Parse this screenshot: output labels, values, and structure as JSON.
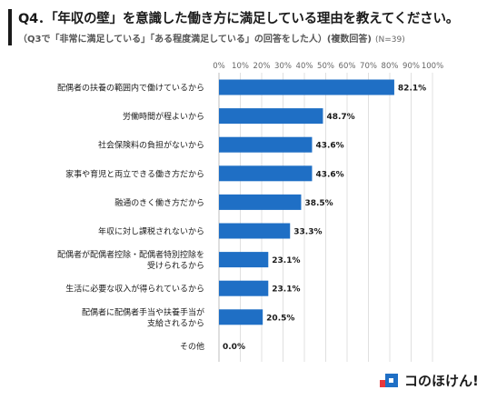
{
  "header": {
    "title": "Q4．「年収の壁」を意識した働き方に満足している理由を教えてください。",
    "subtitle": "（Q3で「非常に満足している」「ある程度満足している」の回答をした人）(複数回答)",
    "sample_note": "(N=39)"
  },
  "logo": {
    "text": "コのほけん!"
  },
  "colors": {
    "bar": "#1f6fc5",
    "grid": "#d9d9d9",
    "axis": "#bfbfbf"
  },
  "chart_data": {
    "type": "bar",
    "orientation": "horizontal",
    "xlim": [
      0,
      100
    ],
    "x_ticks": [
      "0%",
      "10%",
      "20%",
      "30%",
      "40%",
      "50%",
      "60%",
      "70%",
      "80%",
      "90%",
      "100%"
    ],
    "grid": true,
    "categories": [
      [
        "配偶者の扶養の範囲内で働けているから"
      ],
      [
        "労働時間が程よいから"
      ],
      [
        "社会保険料の負担がないから"
      ],
      [
        "家事や育児と両立できる働き方だから"
      ],
      [
        "融通のきく働き方だから"
      ],
      [
        "年収に対し課税されないから"
      ],
      [
        "配偶者が配偶者控除・配偶者特別控除を",
        "受けられるから"
      ],
      [
        "生活に必要な収入が得られているから"
      ],
      [
        "配偶者に配偶者手当や扶養手当が",
        "支給されるから"
      ],
      [
        "その他"
      ]
    ],
    "values": [
      82.1,
      48.7,
      43.6,
      43.6,
      38.5,
      33.3,
      23.1,
      23.1,
      20.5,
      0.0
    ],
    "data_labels": [
      "82.1%",
      "48.7%",
      "43.6%",
      "43.6%",
      "38.5%",
      "33.3%",
      "23.1%",
      "23.1%",
      "20.5%",
      "0.0%"
    ]
  }
}
